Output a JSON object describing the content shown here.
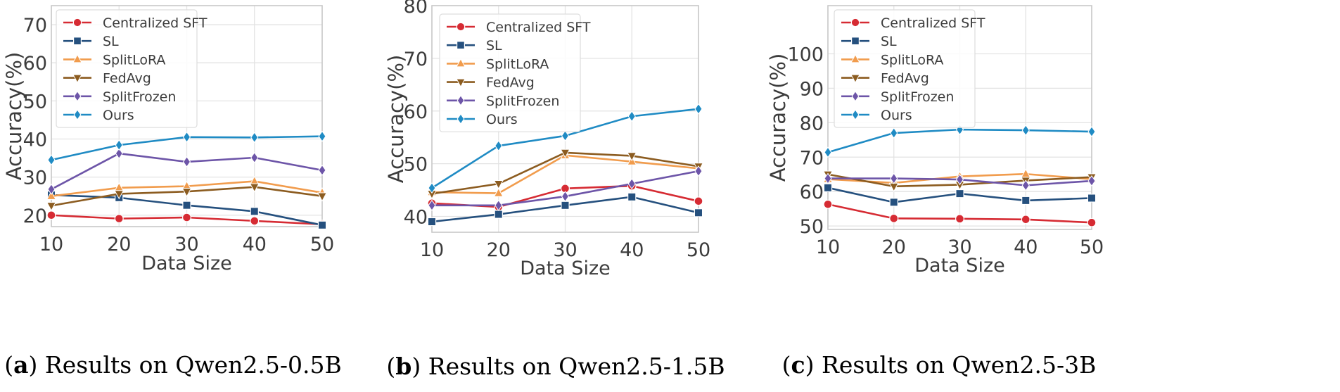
{
  "chart_data": [
    {
      "type": "line",
      "label": "a",
      "caption": "Results on Qwen2.5-0.5B",
      "xlabel": "Data Size",
      "ylabel": "Accuracy(%)",
      "xlim": [
        10,
        50
      ],
      "ylim": [
        17,
        75
      ],
      "xticks": [
        "10",
        "20",
        "30",
        "40",
        "50"
      ],
      "yticks": [
        "20",
        "30",
        "40",
        "50",
        "60",
        "70"
      ],
      "grid": true,
      "legend_position": "top-left",
      "x": [
        10,
        20,
        30,
        40,
        50
      ],
      "series": [
        {
          "name": "Centralized SFT",
          "values": [
            20.0,
            19.1,
            19.4,
            18.5,
            17.6
          ]
        },
        {
          "name": "SL",
          "values": [
            25.3,
            24.6,
            22.6,
            21.0,
            17.4
          ]
        },
        {
          "name": "SplitLoRA",
          "values": [
            25.0,
            27.2,
            27.6,
            28.9,
            25.9
          ]
        },
        {
          "name": "FedAvg",
          "values": [
            22.5,
            25.6,
            26.2,
            27.4,
            25.0
          ]
        },
        {
          "name": "SplitFrozen",
          "values": [
            26.8,
            36.2,
            34.0,
            35.1,
            31.8
          ]
        },
        {
          "name": "Ours",
          "values": [
            34.5,
            38.4,
            40.5,
            40.4,
            40.7
          ]
        }
      ]
    },
    {
      "type": "line",
      "label": "b",
      "caption": "Results on Qwen2.5-1.5B",
      "xlabel": "Data Size",
      "ylabel": "Accuracy(%)",
      "xlim": [
        10,
        50
      ],
      "ylim": [
        37,
        80
      ],
      "xticks": [
        "10",
        "20",
        "30",
        "40",
        "50"
      ],
      "yticks": [
        "40",
        "50",
        "60",
        "70",
        "80"
      ],
      "grid": true,
      "legend_position": "top-left",
      "x": [
        10,
        20,
        30,
        40,
        50
      ],
      "series": [
        {
          "name": "Centralized SFT",
          "values": [
            42.5,
            41.8,
            45.3,
            45.8,
            42.9
          ]
        },
        {
          "name": "SL",
          "values": [
            39.0,
            40.4,
            42.1,
            43.7,
            40.7
          ]
        },
        {
          "name": "SplitLoRA",
          "values": [
            44.6,
            44.4,
            51.6,
            50.4,
            49.1
          ]
        },
        {
          "name": "FedAvg",
          "values": [
            44.3,
            46.2,
            52.1,
            51.5,
            49.5
          ]
        },
        {
          "name": "SplitFrozen",
          "values": [
            42.1,
            42.1,
            43.8,
            46.2,
            48.6
          ]
        },
        {
          "name": "Ours",
          "values": [
            45.4,
            53.4,
            55.3,
            59.0,
            60.4
          ]
        }
      ]
    },
    {
      "type": "line",
      "label": "c",
      "caption": "Results on Qwen2.5-3B",
      "xlabel": "Data Size",
      "ylabel": "Accuracy(%)",
      "xlim": [
        10,
        50
      ],
      "ylim": [
        49,
        114
      ],
      "xticks": [
        "10",
        "20",
        "30",
        "40",
        "50"
      ],
      "yticks": [
        "50",
        "60",
        "70",
        "80",
        "90",
        "100"
      ],
      "grid": true,
      "legend_position": "top-left",
      "x": [
        10,
        20,
        30,
        40,
        50
      ],
      "series": [
        {
          "name": "Centralized SFT",
          "values": [
            56.3,
            52.2,
            52.1,
            51.9,
            51.0
          ]
        },
        {
          "name": "SL",
          "values": [
            61.1,
            56.9,
            59.4,
            57.4,
            58.1
          ]
        },
        {
          "name": "SplitLoRA",
          "values": [
            63.6,
            62.5,
            64.4,
            65.1,
            63.6
          ]
        },
        {
          "name": "FedAvg",
          "values": [
            65.0,
            61.5,
            62.0,
            63.2,
            64.2
          ]
        },
        {
          "name": "SplitFrozen",
          "values": [
            63.8,
            63.8,
            63.5,
            61.8,
            63.1
          ]
        },
        {
          "name": "Ours",
          "values": [
            71.4,
            77.0,
            78.0,
            77.8,
            77.4
          ]
        }
      ]
    }
  ],
  "styles": [
    {
      "name": "Centralized SFT",
      "color": "#d62b33",
      "marker": "circle"
    },
    {
      "name": "SL",
      "color": "#25507e",
      "marker": "square"
    },
    {
      "name": "SplitLoRA",
      "color": "#f19c4d",
      "marker": "triangle-up"
    },
    {
      "name": "FedAvg",
      "color": "#8c5c20",
      "marker": "triangle-down"
    },
    {
      "name": "SplitFrozen",
      "color": "#6d55a8",
      "marker": "diamond"
    },
    {
      "name": "Ours",
      "color": "#1f8bc4",
      "marker": "diamond"
    }
  ],
  "axis_colors": {
    "spine": "#c8c8c8",
    "grid": "#e3e3e3",
    "tick_text": "#3c3c3c",
    "caption_text": "#000000"
  }
}
